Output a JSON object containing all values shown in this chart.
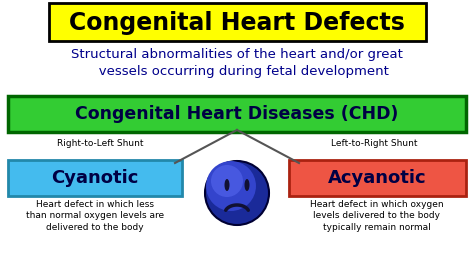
{
  "bg_color": "#ffffff",
  "title_text": "Congenital Heart Defects",
  "title_box_color": "#ffff00",
  "title_box_edge": "#000000",
  "subtitle_text": "Structural abnormalities of the heart and/or great\n   vessels occurring during fetal development",
  "subtitle_color": "#00008B",
  "chd_text": "Congenital Heart Diseases (CHD)",
  "chd_box_color": "#33cc33",
  "chd_box_edge": "#006600",
  "left_label": "Right-to-Left Shunt",
  "right_label": "Left-to-Right Shunt",
  "cyan_text": "Cyanotic",
  "cyan_box_color": "#44bbee",
  "cyan_box_edge": "#2288aa",
  "acyan_text": "Acyanotic",
  "acyan_box_color": "#ee5544",
  "acyan_box_edge": "#aa2211",
  "cyan_desc": "Heart defect in which less\nthan normal oxygen levels are\ndelivered to the body",
  "acyan_desc": "Heart defect in which oxygen\nlevels delivered to the body\ntypically remain normal",
  "desc_color": "#000000",
  "line_color": "#555555",
  "face_dark": "#1a2a99",
  "face_mid": "#3344cc",
  "face_light": "#5566ee"
}
